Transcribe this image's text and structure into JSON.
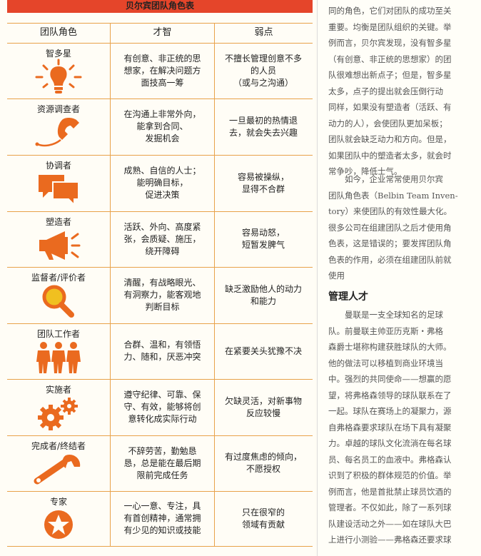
{
  "table": {
    "title": "贝尔宾团队角色表",
    "headers": [
      "团队角色",
      "才智",
      "弱点"
    ],
    "rows": [
      {
        "role": "智多星",
        "icon": "lightbulb-icon",
        "talent": [
          "有创意、非正统的思",
          "想家，在解决问题方",
          "面技高一筹"
        ],
        "weakness": [
          "不擅长管理创意不多",
          "的人员",
          "（或与之沟通）"
        ]
      },
      {
        "role": "资源调查者",
        "icon": "telephone-icon",
        "talent": [
          "在沟通上非常外向，",
          "能拿到合同、",
          "发掘机会"
        ],
        "weakness": [
          "一旦最初的热情退",
          "去，就会失去兴趣"
        ]
      },
      {
        "role": "协调者",
        "icon": "speech-bubbles-icon",
        "talent": [
          "成熟、自信的人士；",
          "能明确目标，",
          "促进决策"
        ],
        "weakness": [
          "容易被操纵，",
          "显得不合群"
        ]
      },
      {
        "role": "塑造者",
        "icon": "megaphone-icon",
        "talent": [
          "活跃、外向、高度紧",
          "张，会质疑、施压，",
          "绕开障碍"
        ],
        "weakness": [
          "容易动怒，",
          "短暂发脾气"
        ]
      },
      {
        "role": "监督者/评价者",
        "icon": "magnifier-icon",
        "talent": [
          "清醒，有战略眼光、",
          "有洞察力，能客观地",
          "判断目标"
        ],
        "weakness": [
          "缺乏激励他人的动力",
          "和能力"
        ]
      },
      {
        "role": "团队工作者",
        "icon": "people-icon",
        "talent": [
          "合群、温和，有领悟",
          "力、随和，厌恶冲突"
        ],
        "weakness": [
          "在紧要关头犹豫不决"
        ]
      },
      {
        "role": "实施者",
        "icon": "gears-icon",
        "talent": [
          "遵守纪律、可靠、保",
          "守、有效，能够将创",
          "意转化成实际行动"
        ],
        "weakness": [
          "欠缺灵活，对新事物",
          "反应较慢"
        ]
      },
      {
        "role": "完成者/终结者",
        "icon": "wrench-icon",
        "talent": [
          "不辞劳苦，勤勉恳",
          "恳，总是能在最后期",
          "限前完成任务"
        ],
        "weakness": [
          "有过度焦虑的倾向，",
          "不愿授权"
        ]
      },
      {
        "role": "专家",
        "icon": "star-badge-icon",
        "talent": [
          "一心一意、专注，具",
          "有首创精神，通常拥",
          "有少见的知识或技能"
        ],
        "weakness": [
          "只在很窄的",
          "领域有贡献"
        ]
      }
    ]
  },
  "article": {
    "para1": [
      "同的角色，它们对团队的成功至关",
      "重要。均衡是团队组织的关键。举",
      "例而言，贝尔宾发现，没有智多星",
      "（有创意、非正统的思想家）的团",
      "队很难想出新点子；但是，智多星",
      "太多，点子的提出就会压倒行动",
      "同样，如果没有塑造者（活跃、有",
      "动力的人），会使团队更加呆板；",
      "团队就会缺乏动力和方向。但是，",
      "如果团队中的塑造者太多，就会时",
      "常争吵，降低士气。"
    ],
    "para2": [
      "如今，企业常常使用贝尔宾",
      "团队角色表（Belbin Team Inven-",
      "tory）来使团队的有效性最大化。",
      "很多公司在组建团队之后才使用角",
      "色表，这是错误的；要发挥团队角",
      "色表的作用，必须在组建团队前就",
      "使用"
    ],
    "section_title": "管理人才",
    "para3": [
      "曼联是一支全球知名的足球",
      "队。前曼联主帅亚历克斯・弗格",
      "森爵士堪称构建获胜球队的大师。",
      "他的做法可以移植到商业环境当",
      "中。强烈的共同使命——想赢的愿",
      "望，将弗格森领导的球队联系在了",
      "一起。球队在赛场上的凝聚力，源",
      "自弗格森要求球队在场下具有凝聚",
      "力。卓越的球队文化流淌在每名球",
      "员、每名员工的血液中。弗格森认",
      "识到了积极的群体规范的价值。举",
      "例而言，他是首批禁止球员饮酒的",
      "管理者。不仅如此，除了一系列球",
      "队建设活动之外——如在球队大巴",
      "上进行小测验——弗格森还要求球"
    ]
  },
  "colors": {
    "title_bar": "#e5452a",
    "icon_orange": "#ea6a1f",
    "rule": "#e8a24a",
    "magnifier_lens": "#f0c020"
  }
}
